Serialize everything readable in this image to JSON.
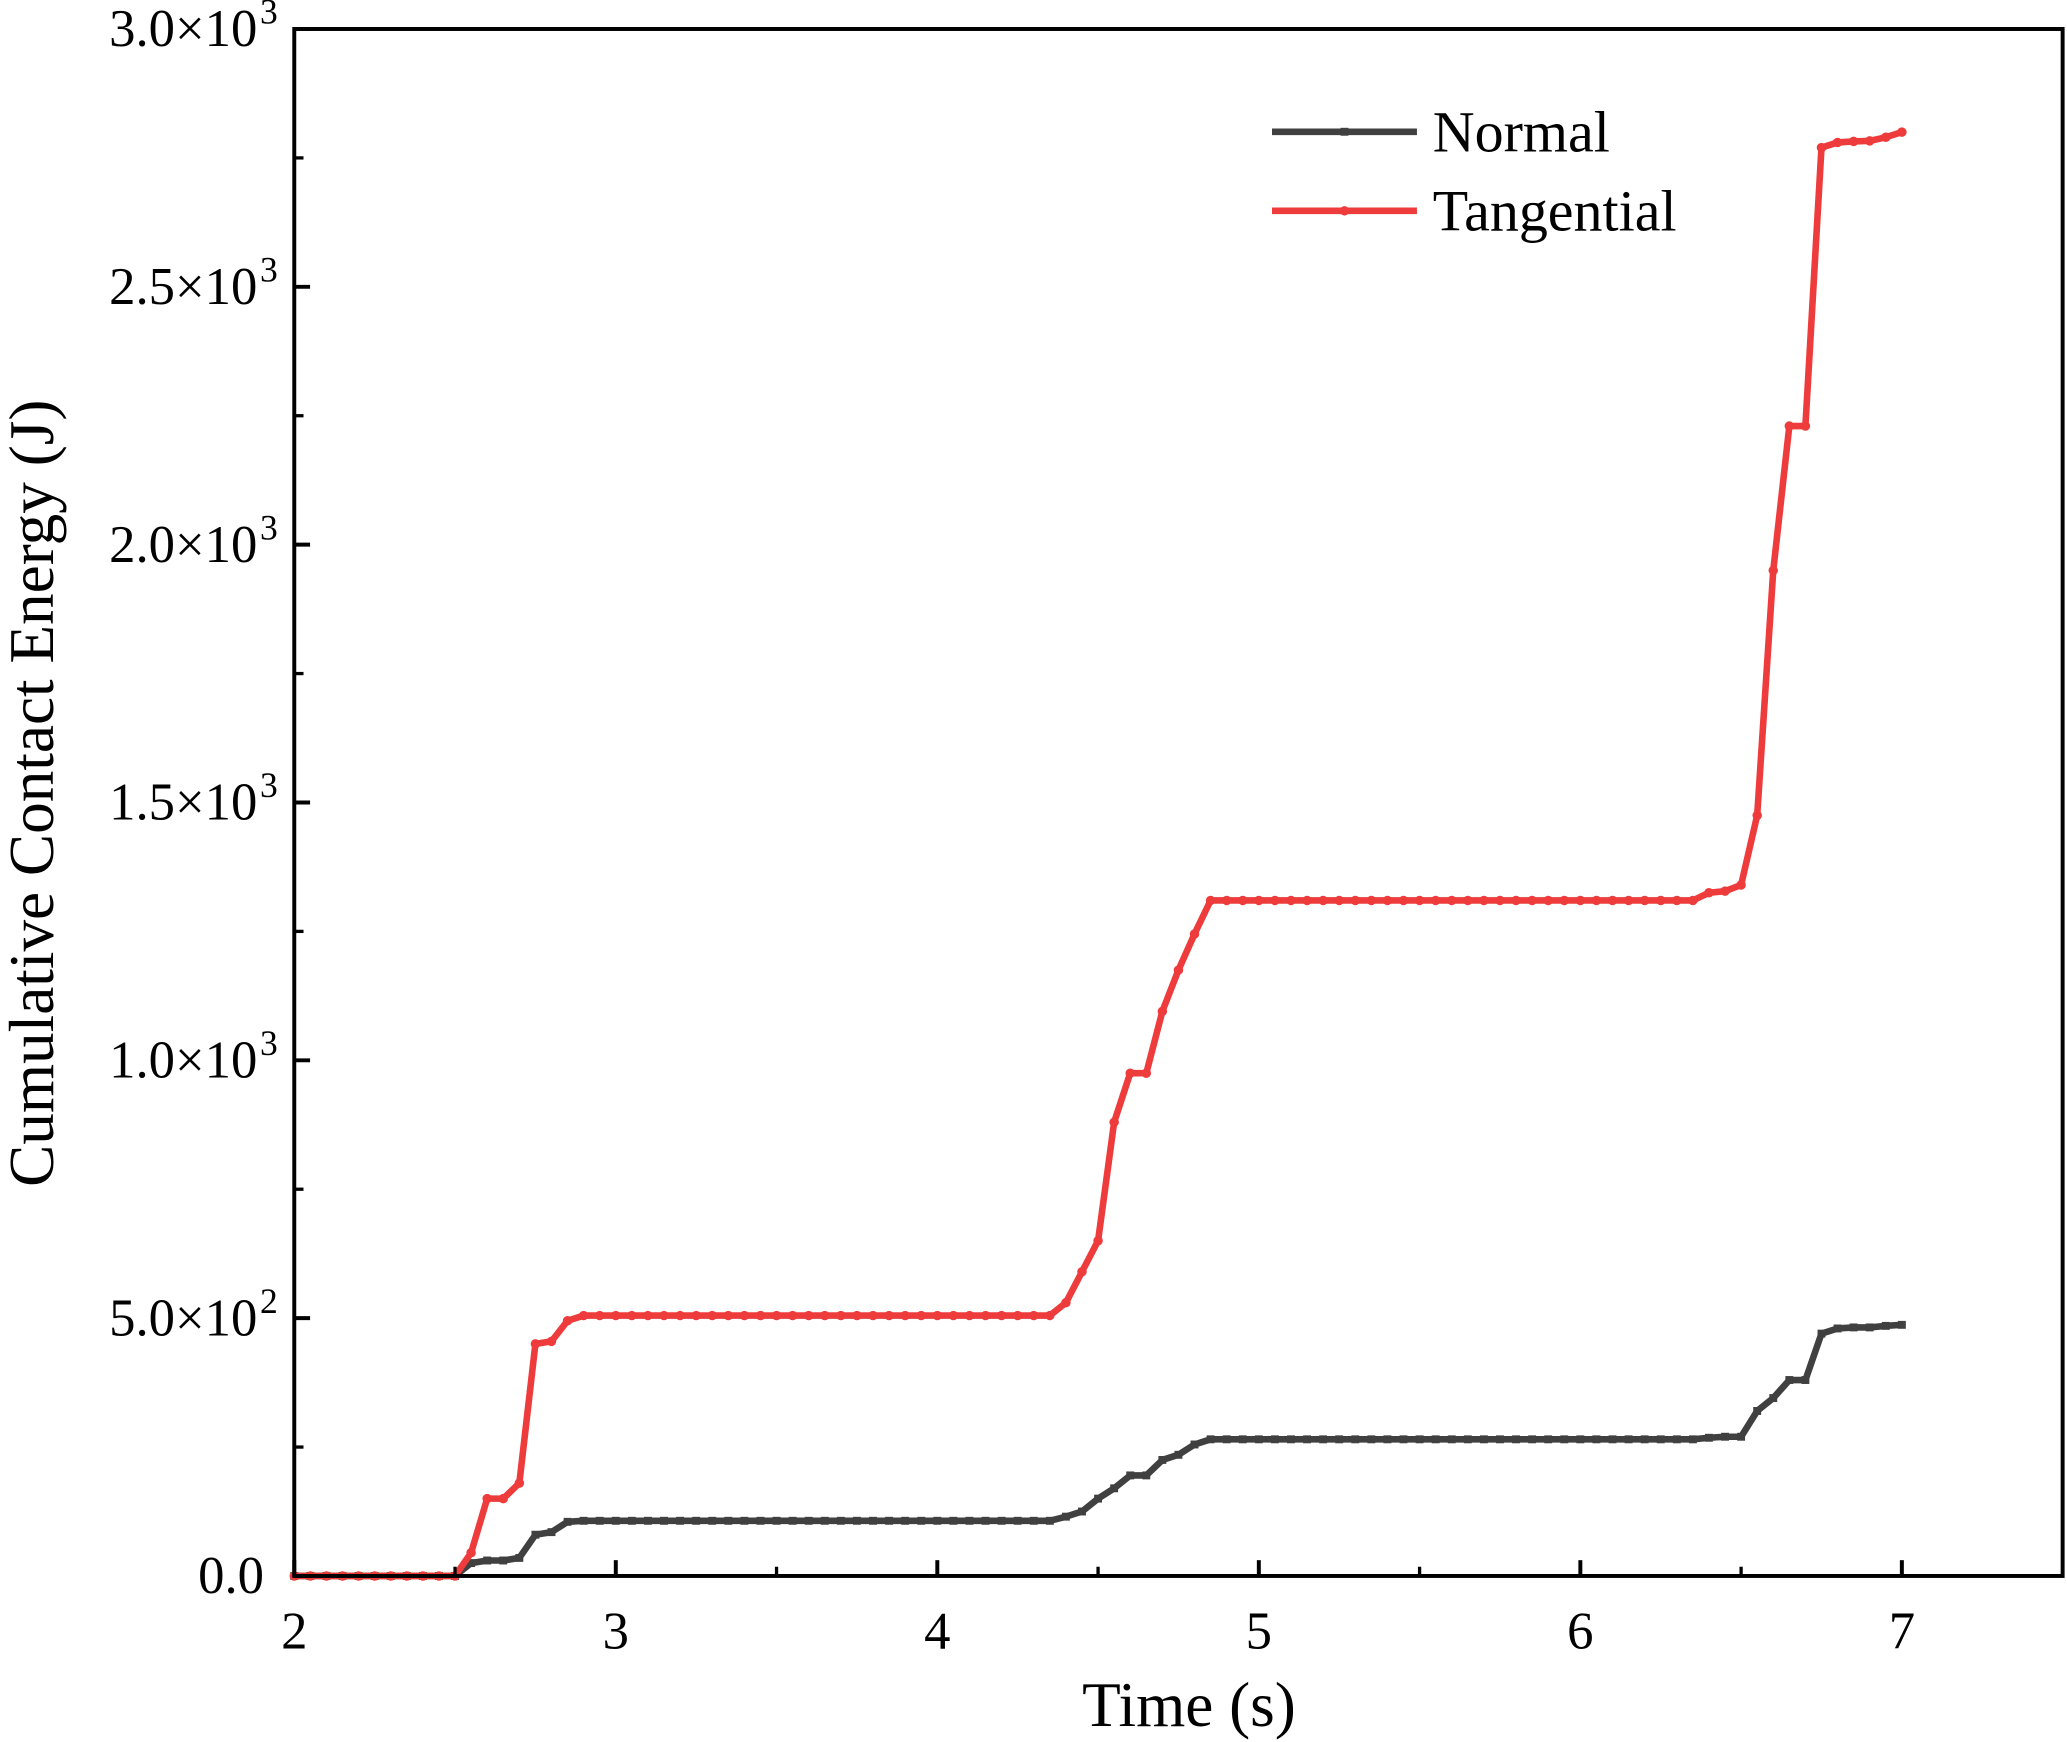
{
  "chart_data": {
    "type": "line",
    "title": "",
    "xlabel": "Time (s)",
    "ylabel": "Cumulative Contact Energy (J)",
    "xlim": [
      2,
      7.5
    ],
    "ylim": [
      0,
      3000
    ],
    "x_start": 2,
    "x_step": 0.05,
    "x_ticks": [
      2,
      3,
      4,
      5,
      6,
      7
    ],
    "x_tick_labels": [
      "2",
      "3",
      "4",
      "5",
      "6",
      "7"
    ],
    "y_ticks": [
      0,
      500,
      1000,
      1500,
      2000,
      2500,
      3000
    ],
    "y_tick_labels": [
      {
        "mant": "0.0",
        "exp": ""
      },
      {
        "mant": "5.0×10",
        "exp": "2"
      },
      {
        "mant": "1.0×10",
        "exp": "3"
      },
      {
        "mant": "1.5×10",
        "exp": "3"
      },
      {
        "mant": "2.0×10",
        "exp": "3"
      },
      {
        "mant": "2.5×10",
        "exp": "3"
      },
      {
        "mant": "3.0×10",
        "exp": "3"
      }
    ],
    "grid": false,
    "legend_position": "top-right",
    "series": [
      {
        "name": "Normal",
        "color": "#404040",
        "marker": "square",
        "values": [
          0,
          0,
          0,
          0,
          0,
          0,
          0,
          0,
          0,
          0,
          0,
          25,
          30,
          30,
          35,
          80,
          85,
          105,
          107,
          107,
          107,
          107,
          107,
          107,
          107,
          107,
          107,
          107,
          107,
          107,
          107,
          107,
          107,
          107,
          107,
          107,
          107,
          107,
          107,
          107,
          107,
          107,
          107,
          107,
          107,
          107,
          107,
          107,
          115,
          125,
          150,
          170,
          195,
          195,
          225,
          235,
          255,
          265,
          265,
          265,
          265,
          265,
          265,
          265,
          265,
          265,
          265,
          265,
          265,
          265,
          265,
          265,
          265,
          265,
          265,
          265,
          265,
          265,
          265,
          265,
          265,
          265,
          265,
          265,
          265,
          265,
          265,
          265,
          268,
          270,
          270,
          320,
          345,
          380,
          380,
          470,
          480,
          482,
          482,
          485,
          487
        ]
      },
      {
        "name": "Tangential",
        "color": "#ee3b3b",
        "marker": "circle",
        "values": [
          0,
          0,
          0,
          0,
          0,
          0,
          0,
          0,
          0,
          0,
          0,
          45,
          150,
          150,
          180,
          450,
          455,
          495,
          505,
          505,
          505,
          505,
          505,
          505,
          505,
          505,
          505,
          505,
          505,
          505,
          505,
          505,
          505,
          505,
          505,
          505,
          505,
          505,
          505,
          505,
          505,
          505,
          505,
          505,
          505,
          505,
          505,
          505,
          530,
          590,
          650,
          880,
          975,
          975,
          1095,
          1175,
          1245,
          1310,
          1310,
          1310,
          1310,
          1310,
          1310,
          1310,
          1310,
          1310,
          1310,
          1310,
          1310,
          1310,
          1310,
          1310,
          1310,
          1310,
          1310,
          1310,
          1310,
          1310,
          1310,
          1310,
          1310,
          1310,
          1310,
          1310,
          1310,
          1310,
          1310,
          1310,
          1325,
          1328,
          1340,
          1475,
          1950,
          2230,
          2230,
          2770,
          2780,
          2782,
          2783,
          2790,
          2800
        ]
      }
    ]
  }
}
